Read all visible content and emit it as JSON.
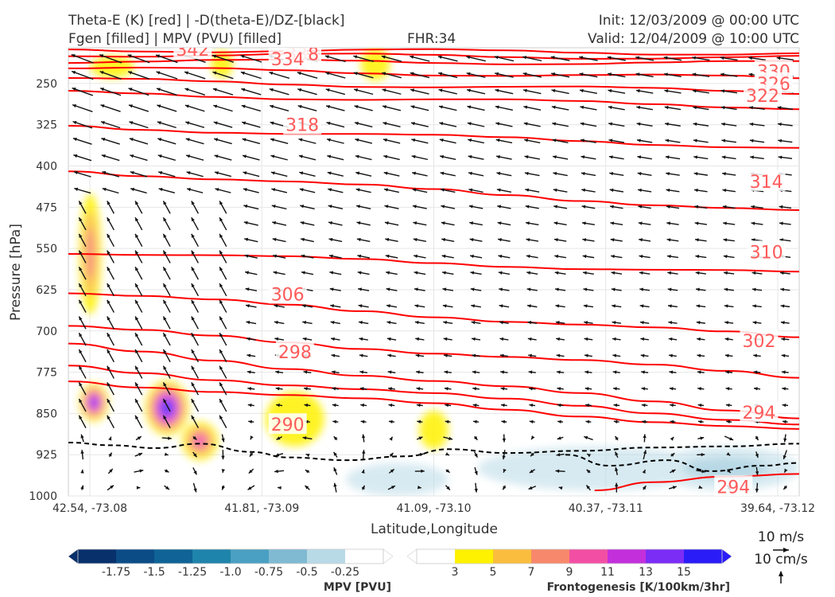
{
  "header": {
    "left_line1": "Theta-E (K) [red] | -D(theta-E)/DZ-[black]",
    "left_line2": "Fgen [filled] | MPV (PVU) [filled]",
    "center": "FHR:34",
    "right_line1": "Init: 12/03/2009 @ 00:00 UTC",
    "right_line2": "Valid: 12/04/2009 @ 10:00 UTC"
  },
  "colors": {
    "theta_e": "#ff0000",
    "theta_e_label": "#ff5a5a",
    "stability_contour": "#000000",
    "wind_vector": "#111111",
    "grid": "#e6e6e6"
  },
  "chart_data": {
    "type": "cross-section",
    "xlabel": "Latitude,Longitude",
    "ylabel": "Pressure [hPa]",
    "x_ticks": [
      "42.54, -73.08",
      "41.81, -73.09",
      "41.09, -73.10",
      "40.37, -73.11",
      "39.64, -73.12"
    ],
    "y_ticks": [
      250,
      325,
      400,
      475,
      550,
      625,
      700,
      775,
      850,
      925,
      1000
    ],
    "ylim": [
      1000,
      185
    ],
    "y_inverted": true,
    "grid": true,
    "theta_e_contours": [
      {
        "label": "342",
        "left_p": 188,
        "right_p": 195
      },
      {
        "label": "338",
        "left_p": 197,
        "right_p": 203
      },
      {
        "label": "334",
        "left_p": 209,
        "right_p": 213
      },
      {
        "label": "330",
        "left_p": 222,
        "right_p": 241
      },
      {
        "label": "326",
        "left_p": 243,
        "right_p": 266
      },
      {
        "label": "322",
        "left_p": 267,
        "right_p": 293
      },
      {
        "label": "318",
        "left_p": 328,
        "right_p": 366
      },
      {
        "label": "314",
        "left_p": 407,
        "right_p": 483
      },
      {
        "label": "310",
        "left_p": 556,
        "right_p": 596
      },
      {
        "label": "306",
        "left_p": 630,
        "right_p": 713
      },
      {
        "label": "302",
        "left_p": 693,
        "right_p": 783
      },
      {
        "label": "298",
        "left_p": 727,
        "right_p": 855
      },
      {
        "label": "294",
        "left_p": 765,
        "right_p": 868
      },
      {
        "label": "290",
        "left_p": 790,
        "right_p": 880
      },
      {
        "label": "294",
        "left_p": null,
        "right_p": 960
      }
    ],
    "contour_labels": [
      {
        "text": "342",
        "x": 0.17,
        "p": 188
      },
      {
        "text": "338",
        "x": 0.32,
        "p": 196
      },
      {
        "text": "334",
        "x": 0.3,
        "p": 205
      },
      {
        "text": "330",
        "x": 0.965,
        "p": 228
      },
      {
        "text": "326",
        "x": 0.965,
        "p": 250
      },
      {
        "text": "322",
        "x": 0.95,
        "p": 272
      },
      {
        "text": "318",
        "x": 0.32,
        "p": 325
      },
      {
        "text": "314",
        "x": 0.955,
        "p": 428
      },
      {
        "text": "310",
        "x": 0.955,
        "p": 556
      },
      {
        "text": "306",
        "x": 0.3,
        "p": 633
      },
      {
        "text": "302",
        "x": 0.945,
        "p": 718
      },
      {
        "text": "298",
        "x": 0.31,
        "p": 738
      },
      {
        "text": "294",
        "x": 0.945,
        "p": 848
      },
      {
        "text": "290",
        "x": 0.3,
        "p": 870
      },
      {
        "text": "294",
        "x": 0.91,
        "p": 983
      }
    ],
    "mpv_colorbar": {
      "label": "MPV [PVU]",
      "ticks": [
        "-1.75",
        "-1.5",
        "-1.25",
        "-1.0",
        "-0.75",
        "-0.5",
        "-0.25"
      ],
      "colors": [
        "#08306b",
        "#0b4c86",
        "#0f6396",
        "#1f84ab",
        "#4aa0c2",
        "#7fbad2",
        "#b8dae6",
        "#ffffff"
      ]
    },
    "fgen_colorbar": {
      "label": "Frontogenesis [K/100km/3hr]",
      "ticks": [
        "3",
        "5",
        "7",
        "9",
        "11",
        "13",
        "15"
      ],
      "colors": [
        "#ffffff",
        "#fff200",
        "#fbbd3d",
        "#f8886b",
        "#f24fa4",
        "#c42fdc",
        "#7b2df5",
        "#2a1cf7"
      ]
    },
    "fgen_regions": [
      {
        "cx": 0.03,
        "p": 560,
        "rx": 0.015,
        "rp": 110,
        "level": 3
      },
      {
        "cx": 0.035,
        "p": 830,
        "rx": 0.02,
        "rp": 35,
        "level": 6
      },
      {
        "cx": 0.135,
        "p": 840,
        "rx": 0.03,
        "rp": 50,
        "level": 7
      },
      {
        "cx": 0.18,
        "p": 900,
        "rx": 0.025,
        "rp": 35,
        "level": 4
      },
      {
        "cx": 0.06,
        "p": 220,
        "rx": 0.03,
        "rp": 20,
        "level": 1
      },
      {
        "cx": 0.21,
        "p": 215,
        "rx": 0.015,
        "rp": 25,
        "level": 1
      },
      {
        "cx": 0.42,
        "p": 215,
        "rx": 0.02,
        "rp": 30,
        "level": 1
      },
      {
        "cx": 0.31,
        "p": 860,
        "rx": 0.04,
        "rp": 50,
        "level": 1
      },
      {
        "cx": 0.5,
        "p": 880,
        "rx": 0.02,
        "rp": 35,
        "level": 1
      }
    ],
    "mpv_regions": [
      {
        "cx": 0.72,
        "p": 950,
        "rx": 0.16,
        "rp": 40,
        "level": 1
      },
      {
        "cx": 0.9,
        "p": 950,
        "rx": 0.1,
        "rp": 40,
        "level": 2
      },
      {
        "cx": 0.45,
        "p": 970,
        "rx": 0.07,
        "rp": 30,
        "level": 1
      }
    ],
    "wind_vector_scale": {
      "horizontal": "10 m/s",
      "vertical": "10 cm/s"
    }
  }
}
